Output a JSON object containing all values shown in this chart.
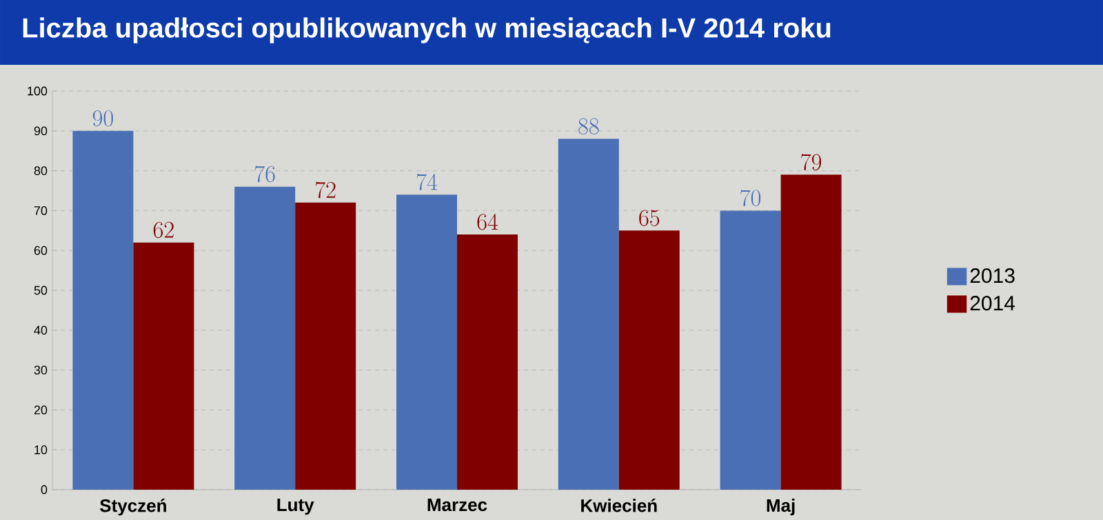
{
  "chart_data": {
    "type": "bar",
    "title": "Liczba upadłosci opublikowanych w miesiącach I-V 2014 roku",
    "categories": [
      "Styczeń",
      "Luty",
      "Marzec",
      "Kwiecień",
      "Maj"
    ],
    "series": [
      {
        "name": "2013",
        "color": "#4a6fb5",
        "values": [
          90,
          76,
          74,
          88,
          70
        ]
      },
      {
        "name": "2014",
        "color": "#800000",
        "values": [
          62,
          72,
          64,
          65,
          79
        ]
      }
    ],
    "ylim": [
      0,
      100
    ],
    "yticks": [
      0,
      10,
      20,
      30,
      40,
      50,
      60,
      70,
      80,
      90,
      100
    ],
    "grid": "y",
    "legend": "right",
    "data_labels": true
  }
}
